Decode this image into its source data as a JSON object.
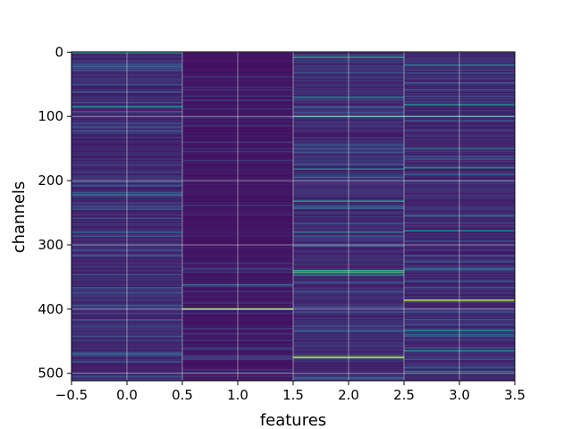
{
  "chart_data": {
    "type": "heatmap",
    "colormap": "viridis",
    "xlabel": "features",
    "ylabel": "channels",
    "xlim": [
      -0.5,
      3.5
    ],
    "ylim": [
      511.5,
      -0.5
    ],
    "y_inverted": true,
    "grid": true,
    "n_channels": 512,
    "columns": [
      0,
      1,
      2,
      3
    ],
    "x_ticks": [
      -0.5,
      0.0,
      0.5,
      1.0,
      1.5,
      2.0,
      2.5,
      3.0,
      3.5
    ],
    "x_tick_labels": [
      "−0.5",
      "0.0",
      "0.5",
      "1.0",
      "1.5",
      "2.0",
      "2.5",
      "3.0",
      "3.5"
    ],
    "y_ticks": [
      0,
      100,
      200,
      300,
      400,
      500
    ],
    "y_tick_labels": [
      "0",
      "100",
      "200",
      "300",
      "400",
      "500"
    ],
    "bright_rows": [
      {
        "column": 0,
        "channel": 1,
        "value": 0.45
      },
      {
        "column": 0,
        "channel": 22,
        "value": 0.3
      },
      {
        "column": 0,
        "channel": 85,
        "value": 0.5
      },
      {
        "column": 0,
        "channel": 222,
        "value": 0.35
      },
      {
        "column": 0,
        "channel": 280,
        "value": 0.35
      },
      {
        "column": 0,
        "channel": 470,
        "value": 0.3
      },
      {
        "column": 1,
        "channel": 362,
        "value": 0.35
      },
      {
        "column": 1,
        "channel": 400,
        "value": 0.85
      },
      {
        "column": 2,
        "channel": 8,
        "value": 0.5
      },
      {
        "column": 2,
        "channel": 70,
        "value": 0.4
      },
      {
        "column": 2,
        "channel": 100,
        "value": 0.55
      },
      {
        "column": 2,
        "channel": 182,
        "value": 0.4
      },
      {
        "column": 2,
        "channel": 195,
        "value": 0.35
      },
      {
        "column": 2,
        "channel": 232,
        "value": 0.5
      },
      {
        "column": 2,
        "channel": 243,
        "value": 0.35
      },
      {
        "column": 2,
        "channel": 280,
        "value": 0.4
      },
      {
        "column": 2,
        "channel": 302,
        "value": 0.3
      },
      {
        "column": 2,
        "channel": 340,
        "value": 0.6
      },
      {
        "column": 2,
        "channel": 343,
        "value": 0.65
      },
      {
        "column": 2,
        "channel": 347,
        "value": 0.45
      },
      {
        "column": 2,
        "channel": 434,
        "value": 0.35
      },
      {
        "column": 2,
        "channel": 475,
        "value": 0.9
      },
      {
        "column": 3,
        "channel": 20,
        "value": 0.35
      },
      {
        "column": 3,
        "channel": 48,
        "value": 0.3
      },
      {
        "column": 3,
        "channel": 82,
        "value": 0.5
      },
      {
        "column": 3,
        "channel": 100,
        "value": 0.45
      },
      {
        "column": 3,
        "channel": 150,
        "value": 0.35
      },
      {
        "column": 3,
        "channel": 180,
        "value": 0.45
      },
      {
        "column": 3,
        "channel": 255,
        "value": 0.35
      },
      {
        "column": 3,
        "channel": 278,
        "value": 0.45
      },
      {
        "column": 3,
        "channel": 338,
        "value": 0.35
      },
      {
        "column": 3,
        "channel": 386,
        "value": 0.9
      },
      {
        "column": 3,
        "channel": 433,
        "value": 0.45
      },
      {
        "column": 3,
        "channel": 440,
        "value": 0.35
      },
      {
        "column": 3,
        "channel": 465,
        "value": 0.5
      },
      {
        "column": 3,
        "channel": 497,
        "value": 0.4
      }
    ]
  }
}
